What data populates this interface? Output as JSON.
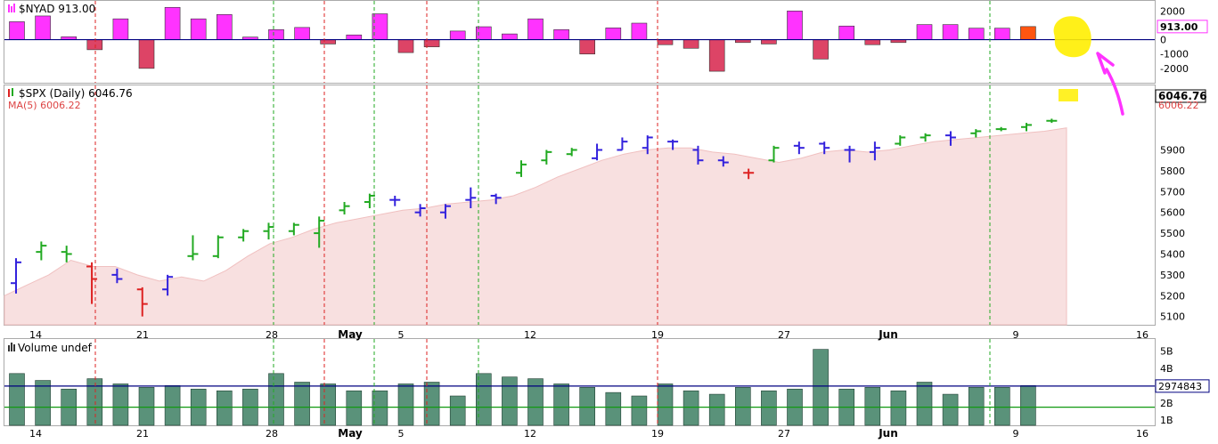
{
  "chart_data": [
    {
      "type": "bar",
      "panel": "nyad",
      "title": "$NYAD 913.00",
      "last_value_label": "913.00",
      "ylim": [
        -3000,
        2700
      ],
      "y_ticks": [
        "2000",
        "1000",
        "0",
        "-1000",
        "-2000"
      ],
      "y_tick_values": [
        2000,
        1000,
        0,
        -1000,
        -2000
      ],
      "up_color": "#ff33ff",
      "down_color": "#dd4466",
      "last_color": "#ff5511",
      "values": [
        1250,
        1650,
        200,
        -700,
        1450,
        -2000,
        2250,
        1450,
        1750,
        180,
        700,
        850,
        -300,
        330,
        1800,
        -900,
        -500,
        600,
        900,
        400,
        1450,
        700,
        -1000,
        820,
        1150,
        -350,
        -600,
        -2200,
        -200,
        -300,
        2000,
        -1350,
        950,
        -350,
        -200,
        1050,
        1050,
        800,
        800,
        913
      ]
    },
    {
      "type": "ohlc",
      "panel": "spx",
      "title": "$SPX (Daily) 6046.76",
      "ma_label": "MA(5) 6006.22",
      "last_price_label": "6046.76",
      "ma_value_label": "6006.22",
      "ylim": [
        5060,
        6210
      ],
      "y_ticks": [
        "5900",
        "5800",
        "5700",
        "5600",
        "5500",
        "5400",
        "5300",
        "5200",
        "5100"
      ],
      "y_tick_values": [
        5900,
        5800,
        5700,
        5600,
        5500,
        5400,
        5300,
        5200,
        5100
      ],
      "colors": {
        "up": "#22aa22",
        "down": "#dd2222",
        "flat": "#3322dd",
        "ma_fill": "#f8e0e0",
        "ma_line": "#f0c0c0"
      },
      "bars": [
        {
          "o": 5260,
          "h": 5380,
          "l": 5210,
          "c": 5360,
          "color": "flat"
        },
        {
          "o": 5410,
          "h": 5460,
          "l": 5370,
          "c": 5440,
          "color": "up"
        },
        {
          "o": 5410,
          "h": 5440,
          "l": 5360,
          "c": 5400,
          "color": "up"
        },
        {
          "o": 5340,
          "h": 5360,
          "l": 5160,
          "c": 5280,
          "color": "down"
        },
        {
          "o": 5300,
          "h": 5330,
          "l": 5260,
          "c": 5280,
          "color": "flat"
        },
        {
          "o": 5230,
          "h": 5240,
          "l": 5100,
          "c": 5160,
          "color": "down"
        },
        {
          "o": 5230,
          "h": 5300,
          "l": 5200,
          "c": 5290,
          "color": "flat"
        },
        {
          "o": 5390,
          "h": 5490,
          "l": 5370,
          "c": 5400,
          "color": "up"
        },
        {
          "o": 5390,
          "h": 5490,
          "l": 5380,
          "c": 5480,
          "color": "up"
        },
        {
          "o": 5480,
          "h": 5520,
          "l": 5460,
          "c": 5510,
          "color": "up"
        },
        {
          "o": 5510,
          "h": 5550,
          "l": 5470,
          "c": 5530,
          "color": "up"
        },
        {
          "o": 5510,
          "h": 5550,
          "l": 5490,
          "c": 5540,
          "color": "up"
        },
        {
          "o": 5500,
          "h": 5580,
          "l": 5430,
          "c": 5560,
          "color": "up"
        },
        {
          "o": 5610,
          "h": 5650,
          "l": 5590,
          "c": 5630,
          "color": "up"
        },
        {
          "o": 5650,
          "h": 5690,
          "l": 5620,
          "c": 5680,
          "color": "up"
        },
        {
          "o": 5660,
          "h": 5680,
          "l": 5630,
          "c": 5660,
          "color": "flat"
        },
        {
          "o": 5600,
          "h": 5640,
          "l": 5580,
          "c": 5620,
          "color": "flat"
        },
        {
          "o": 5600,
          "h": 5640,
          "l": 5570,
          "c": 5630,
          "color": "flat"
        },
        {
          "o": 5660,
          "h": 5720,
          "l": 5620,
          "c": 5670,
          "color": "flat"
        },
        {
          "o": 5680,
          "h": 5690,
          "l": 5640,
          "c": 5670,
          "color": "flat"
        },
        {
          "o": 5790,
          "h": 5850,
          "l": 5770,
          "c": 5830,
          "color": "up"
        },
        {
          "o": 5850,
          "h": 5900,
          "l": 5830,
          "c": 5890,
          "color": "up"
        },
        {
          "o": 5880,
          "h": 5910,
          "l": 5870,
          "c": 5900,
          "color": "up"
        },
        {
          "o": 5860,
          "h": 5930,
          "l": 5850,
          "c": 5900,
          "color": "flat"
        },
        {
          "o": 5900,
          "h": 5960,
          "l": 5900,
          "c": 5940,
          "color": "flat"
        },
        {
          "o": 5910,
          "h": 5970,
          "l": 5880,
          "c": 5960,
          "color": "flat"
        },
        {
          "o": 5940,
          "h": 5950,
          "l": 5900,
          "c": 5940,
          "color": "flat"
        },
        {
          "o": 5900,
          "h": 5920,
          "l": 5830,
          "c": 5850,
          "color": "flat"
        },
        {
          "o": 5850,
          "h": 5870,
          "l": 5820,
          "c": 5840,
          "color": "flat"
        },
        {
          "o": 5790,
          "h": 5810,
          "l": 5760,
          "c": 5790,
          "color": "down"
        },
        {
          "o": 5850,
          "h": 5920,
          "l": 5840,
          "c": 5910,
          "color": "up"
        },
        {
          "o": 5920,
          "h": 5940,
          "l": 5880,
          "c": 5910,
          "color": "flat"
        },
        {
          "o": 5930,
          "h": 5940,
          "l": 5880,
          "c": 5910,
          "color": "flat"
        },
        {
          "o": 5900,
          "h": 5920,
          "l": 5840,
          "c": 5900,
          "color": "flat"
        },
        {
          "o": 5890,
          "h": 5940,
          "l": 5850,
          "c": 5910,
          "color": "flat"
        },
        {
          "o": 5930,
          "h": 5970,
          "l": 5920,
          "c": 5960,
          "color": "up"
        },
        {
          "o": 5960,
          "h": 5980,
          "l": 5940,
          "c": 5970,
          "color": "up"
        },
        {
          "o": 5970,
          "h": 5990,
          "l": 5920,
          "c": 5960,
          "color": "flat"
        },
        {
          "o": 5980,
          "h": 6000,
          "l": 5960,
          "c": 5990,
          "color": "up"
        },
        {
          "o": 6000,
          "h": 6010,
          "l": 5990,
          "c": 6000,
          "color": "up"
        },
        {
          "o": 6010,
          "h": 6030,
          "l": 5990,
          "c": 6020,
          "color": "up"
        },
        {
          "o": 6040,
          "h": 6050,
          "l": 6030,
          "c": 6040,
          "color": "up"
        }
      ],
      "ma": [
        5200,
        5250,
        5300,
        5370,
        5340,
        5340,
        5300,
        5270,
        5290,
        5270,
        5320,
        5390,
        5450,
        5480,
        5520,
        5550,
        5570,
        5590,
        5610,
        5620,
        5640,
        5650,
        5660,
        5680,
        5720,
        5770,
        5810,
        5850,
        5880,
        5900,
        5910,
        5910,
        5890,
        5880,
        5860,
        5840,
        5860,
        5890,
        5900,
        5890,
        5900,
        5920,
        5940,
        5950,
        5960,
        5970,
        5980,
        5990,
        6006
      ]
    },
    {
      "type": "bar",
      "panel": "volume",
      "title": "Volume undef",
      "ylim": [
        700000000,
        5700000000
      ],
      "y_ticks": [
        "5B",
        "4B",
        "2B",
        "1B"
      ],
      "y_tick_values": [
        5000000000,
        4000000000,
        2000000000,
        1000000000
      ],
      "avg_label": "2974843",
      "avg_value": 2974843000,
      "lower_line_value": 1750000000,
      "bar_color": "#5a927a",
      "values": [
        3700000000,
        3300000000,
        2800000000,
        3400000000,
        3100000000,
        2900000000,
        3000000000,
        2800000000,
        2700000000,
        2800000000,
        3700000000,
        3200000000,
        3100000000,
        2700000000,
        2700000000,
        3100000000,
        3200000000,
        2400000000,
        3700000000,
        3500000000,
        3400000000,
        3100000000,
        2900000000,
        2600000000,
        2400000000,
        3100000000,
        2700000000,
        2500000000,
        2900000000,
        2700000000,
        2800000000,
        5100000000,
        2800000000,
        2900000000,
        2700000000,
        3200000000,
        2500000000,
        2900000000,
        2900000000,
        3000000000
      ]
    }
  ],
  "x_axis": {
    "labels": [
      {
        "label": "14",
        "bold": false
      },
      {
        "label": "21",
        "bold": false
      },
      {
        "label": "28",
        "bold": false
      },
      {
        "label": "May",
        "bold": true
      },
      {
        "label": "5",
        "bold": false
      },
      {
        "label": "12",
        "bold": false
      },
      {
        "label": "19",
        "bold": false
      },
      {
        "label": "27",
        "bold": false
      },
      {
        "label": "Jun",
        "bold": true
      },
      {
        "label": "9",
        "bold": false
      },
      {
        "label": "16",
        "bold": false
      }
    ]
  }
}
